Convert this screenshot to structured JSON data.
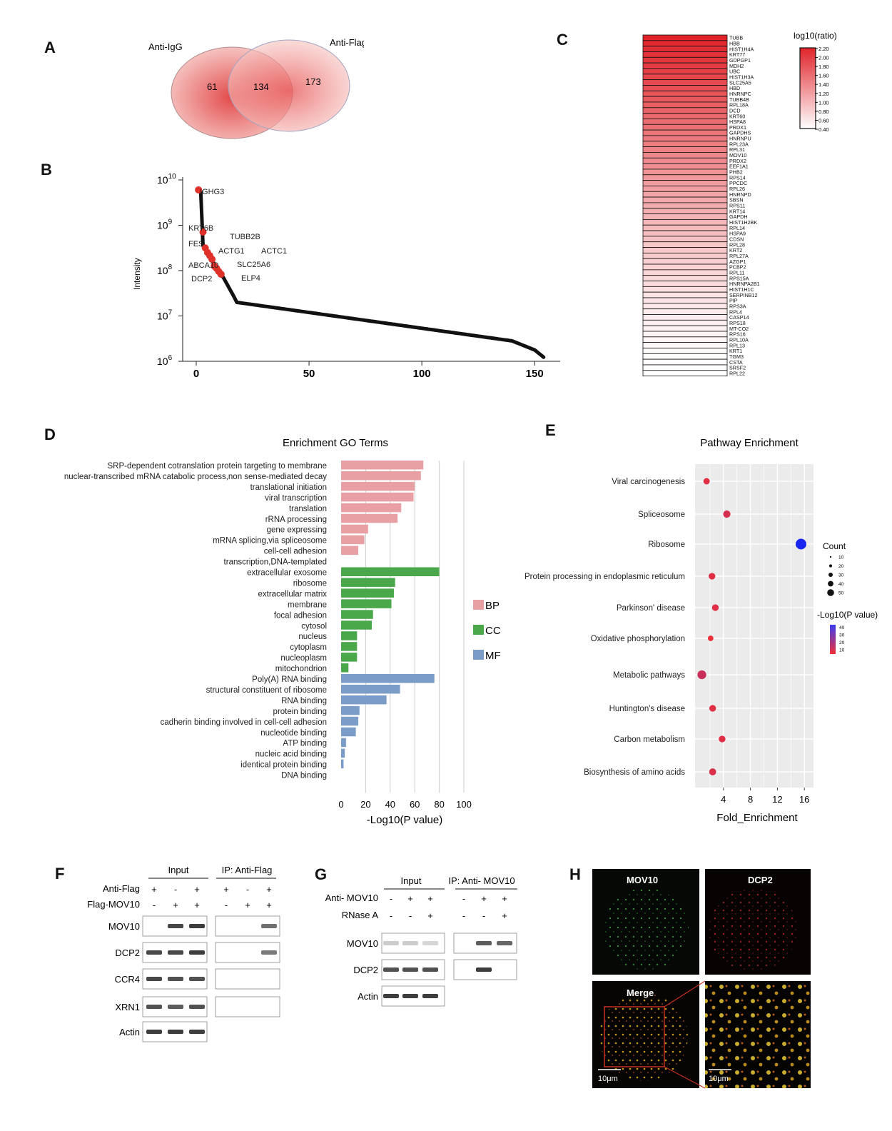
{
  "panels": {
    "A": "A",
    "B": "B",
    "C": "C",
    "D": "D",
    "E": "E",
    "F": "F",
    "G": "G",
    "H": "H"
  },
  "venn": {
    "left_label": "Anti-IgG",
    "right_label": "Anti-Flag",
    "left_only": "61",
    "overlap": "134",
    "right_only": "173"
  },
  "intensity_plot": {
    "ylabel": "Intensity",
    "y_ticks": [
      {
        "base": "10",
        "exp": "10"
      },
      {
        "base": "10",
        "exp": "9"
      },
      {
        "base": "10",
        "exp": "8"
      },
      {
        "base": "10",
        "exp": "7"
      },
      {
        "base": "10",
        "exp": "6"
      }
    ],
    "x_ticks": [
      "0",
      "50",
      "100",
      "150"
    ],
    "labels": [
      "IGHG3",
      "KRT6B",
      "TUBB2B",
      "FES",
      "ACTG1",
      "ACTC1",
      "ABCA10",
      "SLC25A6",
      "DCP2",
      "ELP4"
    ]
  },
  "heatmap": {
    "legend_title": "log10(ratio)",
    "legend_ticks": [
      "2.20",
      "2.00",
      "1.80",
      "1.60",
      "1.40",
      "1.20",
      "1.00",
      "0.80",
      "0.60",
      "0.40"
    ],
    "genes": [
      "TUBB",
      "HBB",
      "HIST1H4A",
      "KRT77",
      "GDPGP1",
      "MDH2",
      "UBC",
      "HIST1H3A",
      "SLC25A5",
      "HBD",
      "HNRNPC",
      "TUBB4B",
      "RPL18A",
      "DCD",
      "KRT60",
      "HSPA8",
      "PRDX1",
      "GAPDHS",
      "HNRNPU",
      "RPL23A",
      "RPL31",
      "MOV10",
      "PRDX2",
      "EEF1A1",
      "PHB2",
      "RPS14",
      "PPCDC",
      "RPL26",
      "HNRNPD",
      "SBSN",
      "RPS11",
      "KRT14",
      "GAPDH",
      "HIST1H2BK",
      "RPL14",
      "HSPA9",
      "CDSN",
      "RPL28",
      "KRT2",
      "RPL27A",
      "AZGP1",
      "PCBP2",
      "RPL11",
      "RPS15A",
      "HNRNPA2B1",
      "HIST1H1C",
      "SERPINB12",
      "PIP",
      "RPS3A",
      "RPL4",
      "CASP14",
      "RPS18",
      "MT-CO2",
      "RPS16",
      "RPL10A",
      "RPL13",
      "KRT1",
      "TGM3",
      "CSTA",
      "SRSF2",
      "RPL22"
    ]
  },
  "go_enrichment": {
    "title": "Enrichment GO Terms",
    "xlabel": "-Log10(P value)",
    "x_ticks": [
      "0",
      "20",
      "40",
      "60",
      "80",
      "100"
    ],
    "legend": [
      {
        "label": "BP",
        "color": "#e8a0a4"
      },
      {
        "label": "CC",
        "color": "#4aa84a"
      },
      {
        "label": "MF",
        "color": "#7b9cc7"
      }
    ]
  },
  "pathway": {
    "title": "Pathway Enrichment",
    "xlabel": "Fold_Enrichment",
    "x_ticks": [
      "4",
      "8",
      "12",
      "16"
    ],
    "count_legend_title": "Count",
    "count_legend_ticks": [
      "10",
      "20",
      "30",
      "40",
      "50"
    ],
    "color_legend_title": "-Log10(P value)",
    "color_legend_ticks": [
      "40",
      "30",
      "20",
      "10"
    ]
  },
  "blot_f": {
    "input_header": "Input",
    "ip_header": "IP: Anti-Flag",
    "row1_label": "Anti-Flag",
    "row1_signs": [
      "+",
      "-",
      "+",
      "+",
      "-",
      "+"
    ],
    "row2_label": "Flag-MOV10",
    "row2_signs": [
      "-",
      "+",
      "+",
      "-",
      "+",
      "+"
    ],
    "bands": [
      "MOV10",
      "DCP2",
      "CCR4",
      "XRN1",
      "Actin"
    ]
  },
  "blot_g": {
    "input_header": "Input",
    "ip_header": "IP: Anti- MOV10",
    "row1_label": "Anti- MOV10",
    "row1_signs": [
      "-",
      "+",
      "+",
      "-",
      "+",
      "+"
    ],
    "row2_label": "RNase A",
    "row2_signs": [
      "-",
      "-",
      "+",
      "-",
      "-",
      "+"
    ],
    "bands": [
      "MOV10",
      "DCP2",
      "Actin"
    ]
  },
  "microscopy": {
    "mov10_label": "MOV10",
    "dcp2_label": "DCP2",
    "merge_label": "Merge",
    "scale_left": "10μm",
    "scale_right": "10μm"
  },
  "chart_data": [
    {
      "type": "bar",
      "title": "Enrichment GO Terms",
      "xlabel": "-Log10(P value)",
      "ylabel": "",
      "orientation": "horizontal",
      "xlim": [
        0,
        100
      ],
      "categories": [
        "SRP-dependent cotranslation protein targeting to membrane",
        "nuclear-transcribed mRNA catabolic process,non sense-mediated decay",
        "translational initiation",
        "viral transcription",
        "translation",
        "rRNA processing",
        "gene expressing",
        "mRNA splicing,via spliceosome",
        "cell-cell adhesion",
        "transcription,DNA-templated",
        "extracellular exosome",
        "ribosome",
        "extracellular matrix",
        "membrane",
        "focal adhesion",
        "cytosol",
        "nucleus",
        "cytoplasm",
        "nucleoplasm",
        "mitochondrion",
        "Poly(A) RNA binding",
        "structural constituent of ribosome",
        "RNA binding",
        "protein binding",
        "cadherin binding involved in cell-cell adhesion",
        "nucleotide binding",
        "ATP binding",
        "nucleic acid binding",
        "identical protein binding",
        "DNA binding"
      ],
      "values": [
        67,
        65,
        60,
        59,
        49,
        46,
        22,
        19,
        14,
        0,
        80,
        44,
        43,
        41,
        26,
        25,
        13,
        13,
        13,
        6,
        76,
        48,
        37,
        15,
        14,
        12,
        4,
        3,
        2,
        0
      ],
      "groups": [
        "BP",
        "BP",
        "BP",
        "BP",
        "BP",
        "BP",
        "BP",
        "BP",
        "BP",
        "BP",
        "CC",
        "CC",
        "CC",
        "CC",
        "CC",
        "CC",
        "CC",
        "CC",
        "CC",
        "CC",
        "MF",
        "MF",
        "MF",
        "MF",
        "MF",
        "MF",
        "MF",
        "MF",
        "MF",
        "MF"
      ]
    },
    {
      "type": "scatter",
      "title": "Pathway Enrichment",
      "xlabel": "Fold_Enrichment",
      "ylabel": "",
      "xlim": [
        0,
        17
      ],
      "categories": [
        "Viral carcinogenesis",
        "Spliceosome",
        "Ribosome",
        "Protein processing in endoplasmic reticulum",
        "Parkinson' disease",
        "Oxidative phosphorylation",
        "Metabolic pathways",
        "Huntington's disease",
        "Carbon metabolism",
        "Biosynthesis of amino acids"
      ],
      "x": [
        1.5,
        4.5,
        15.5,
        2.3,
        2.8,
        2.1,
        0.8,
        2.4,
        3.8,
        2.4
      ],
      "size": [
        12,
        18,
        50,
        14,
        14,
        8,
        30,
        14,
        14,
        16
      ],
      "neglog10p": [
        10,
        12,
        45,
        10,
        10,
        8,
        14,
        10,
        10,
        11
      ]
    },
    {
      "type": "scatter",
      "title": "",
      "xlabel": "",
      "ylabel": "Intensity",
      "xlim": [
        0,
        155
      ],
      "ylim": [
        6,
        10
      ],
      "log_y": true
    },
    {
      "type": "heatmap",
      "title": "log10(ratio)",
      "range": [
        0.4,
        2.2
      ]
    }
  ]
}
